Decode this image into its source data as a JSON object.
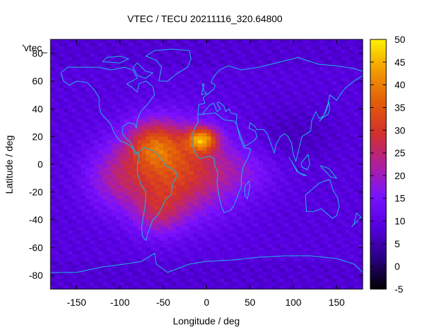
{
  "chart_data": {
    "type": "heatmap",
    "title": "VTEC / TECU 20211116_320.64800",
    "xlabel": "Longitude / deg",
    "ylabel": "Latitude / deg",
    "xlim": [
      -180,
      180
    ],
    "ylim": [
      -90,
      90
    ],
    "x_ticks": [
      "-150",
      "-100",
      "-50",
      "0",
      "50",
      "100",
      "150"
    ],
    "y_ticks": [
      "80",
      "60",
      "40",
      "20",
      "0",
      "-20",
      "-40",
      "-60",
      "-80"
    ],
    "x_tick_values": [
      -150,
      -100,
      -50,
      0,
      50,
      100,
      150
    ],
    "y_tick_values": [
      80,
      60,
      40,
      20,
      0,
      -20,
      -40,
      -60,
      -80
    ],
    "legend_label": "'vtec_",
    "colorbar": {
      "range": [
        -5,
        50
      ],
      "ticks": [
        "50",
        "45",
        "40",
        "35",
        "30",
        "25",
        "20",
        "15",
        "10",
        "5",
        "0",
        "-5"
      ],
      "tick_values": [
        50,
        45,
        40,
        35,
        30,
        25,
        20,
        15,
        10,
        5,
        0,
        -5
      ],
      "palette": [
        "#000000",
        "#2a0082",
        "#5500e0",
        "#7b12ff",
        "#b0209a",
        "#d3302c",
        "#e25d0a",
        "#f29a00",
        "#fff200"
      ]
    },
    "background_vtec": 9,
    "peaks": [
      {
        "lon": -35,
        "lat": -5,
        "vtec": 34,
        "sigma_lon": 45,
        "sigma_lat": 22
      },
      {
        "lon": -5,
        "lat": 18,
        "vtec": 38,
        "sigma_lon": 12,
        "sigma_lat": 6
      },
      {
        "lon": -60,
        "lat": 15,
        "vtec": 27,
        "sigma_lon": 22,
        "sigma_lat": 12
      },
      {
        "lon": -55,
        "lat": -35,
        "vtec": 20,
        "sigma_lon": 20,
        "sigma_lat": 12
      },
      {
        "lon": -105,
        "lat": -10,
        "vtec": 18,
        "sigma_lon": 25,
        "sigma_lat": 15
      },
      {
        "lon": 45,
        "lat": -5,
        "vtec": 14,
        "sigma_lon": 30,
        "sigma_lat": 12
      },
      {
        "lon": 100,
        "lat": 20,
        "vtec": 6,
        "sigma_lon": 35,
        "sigma_lat": 15
      }
    ]
  }
}
